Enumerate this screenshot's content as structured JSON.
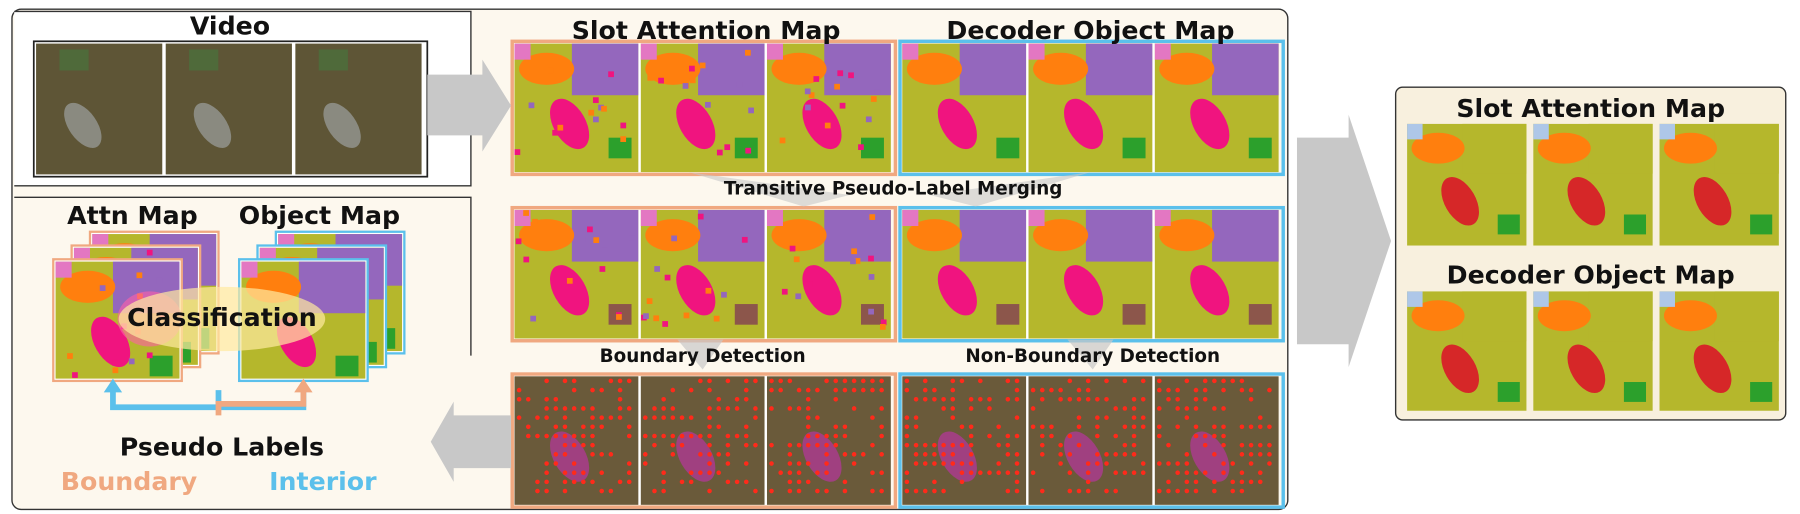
{
  "left_panel": {
    "video_title": "Video",
    "attn_map_title": "Attn Map",
    "object_map_title": "Object Map",
    "classification": "Classification",
    "pseudo_labels": {
      "title": "Pseudo Labels",
      "boundary": "Boundary",
      "interior": "Interior"
    }
  },
  "center": {
    "slot_attention_title": "Slot Attention Map",
    "decoder_object_title": "Decoder Object Map",
    "merging_label": "Transitive Pseudo-Label Merging",
    "boundary_detection": "Boundary Detection",
    "non_boundary_detection": "Non-Boundary Detection"
  },
  "right_panel": {
    "slot_attention_title": "Slot Attention Map",
    "decoder_object_title": "Decoder Object Map"
  }
}
